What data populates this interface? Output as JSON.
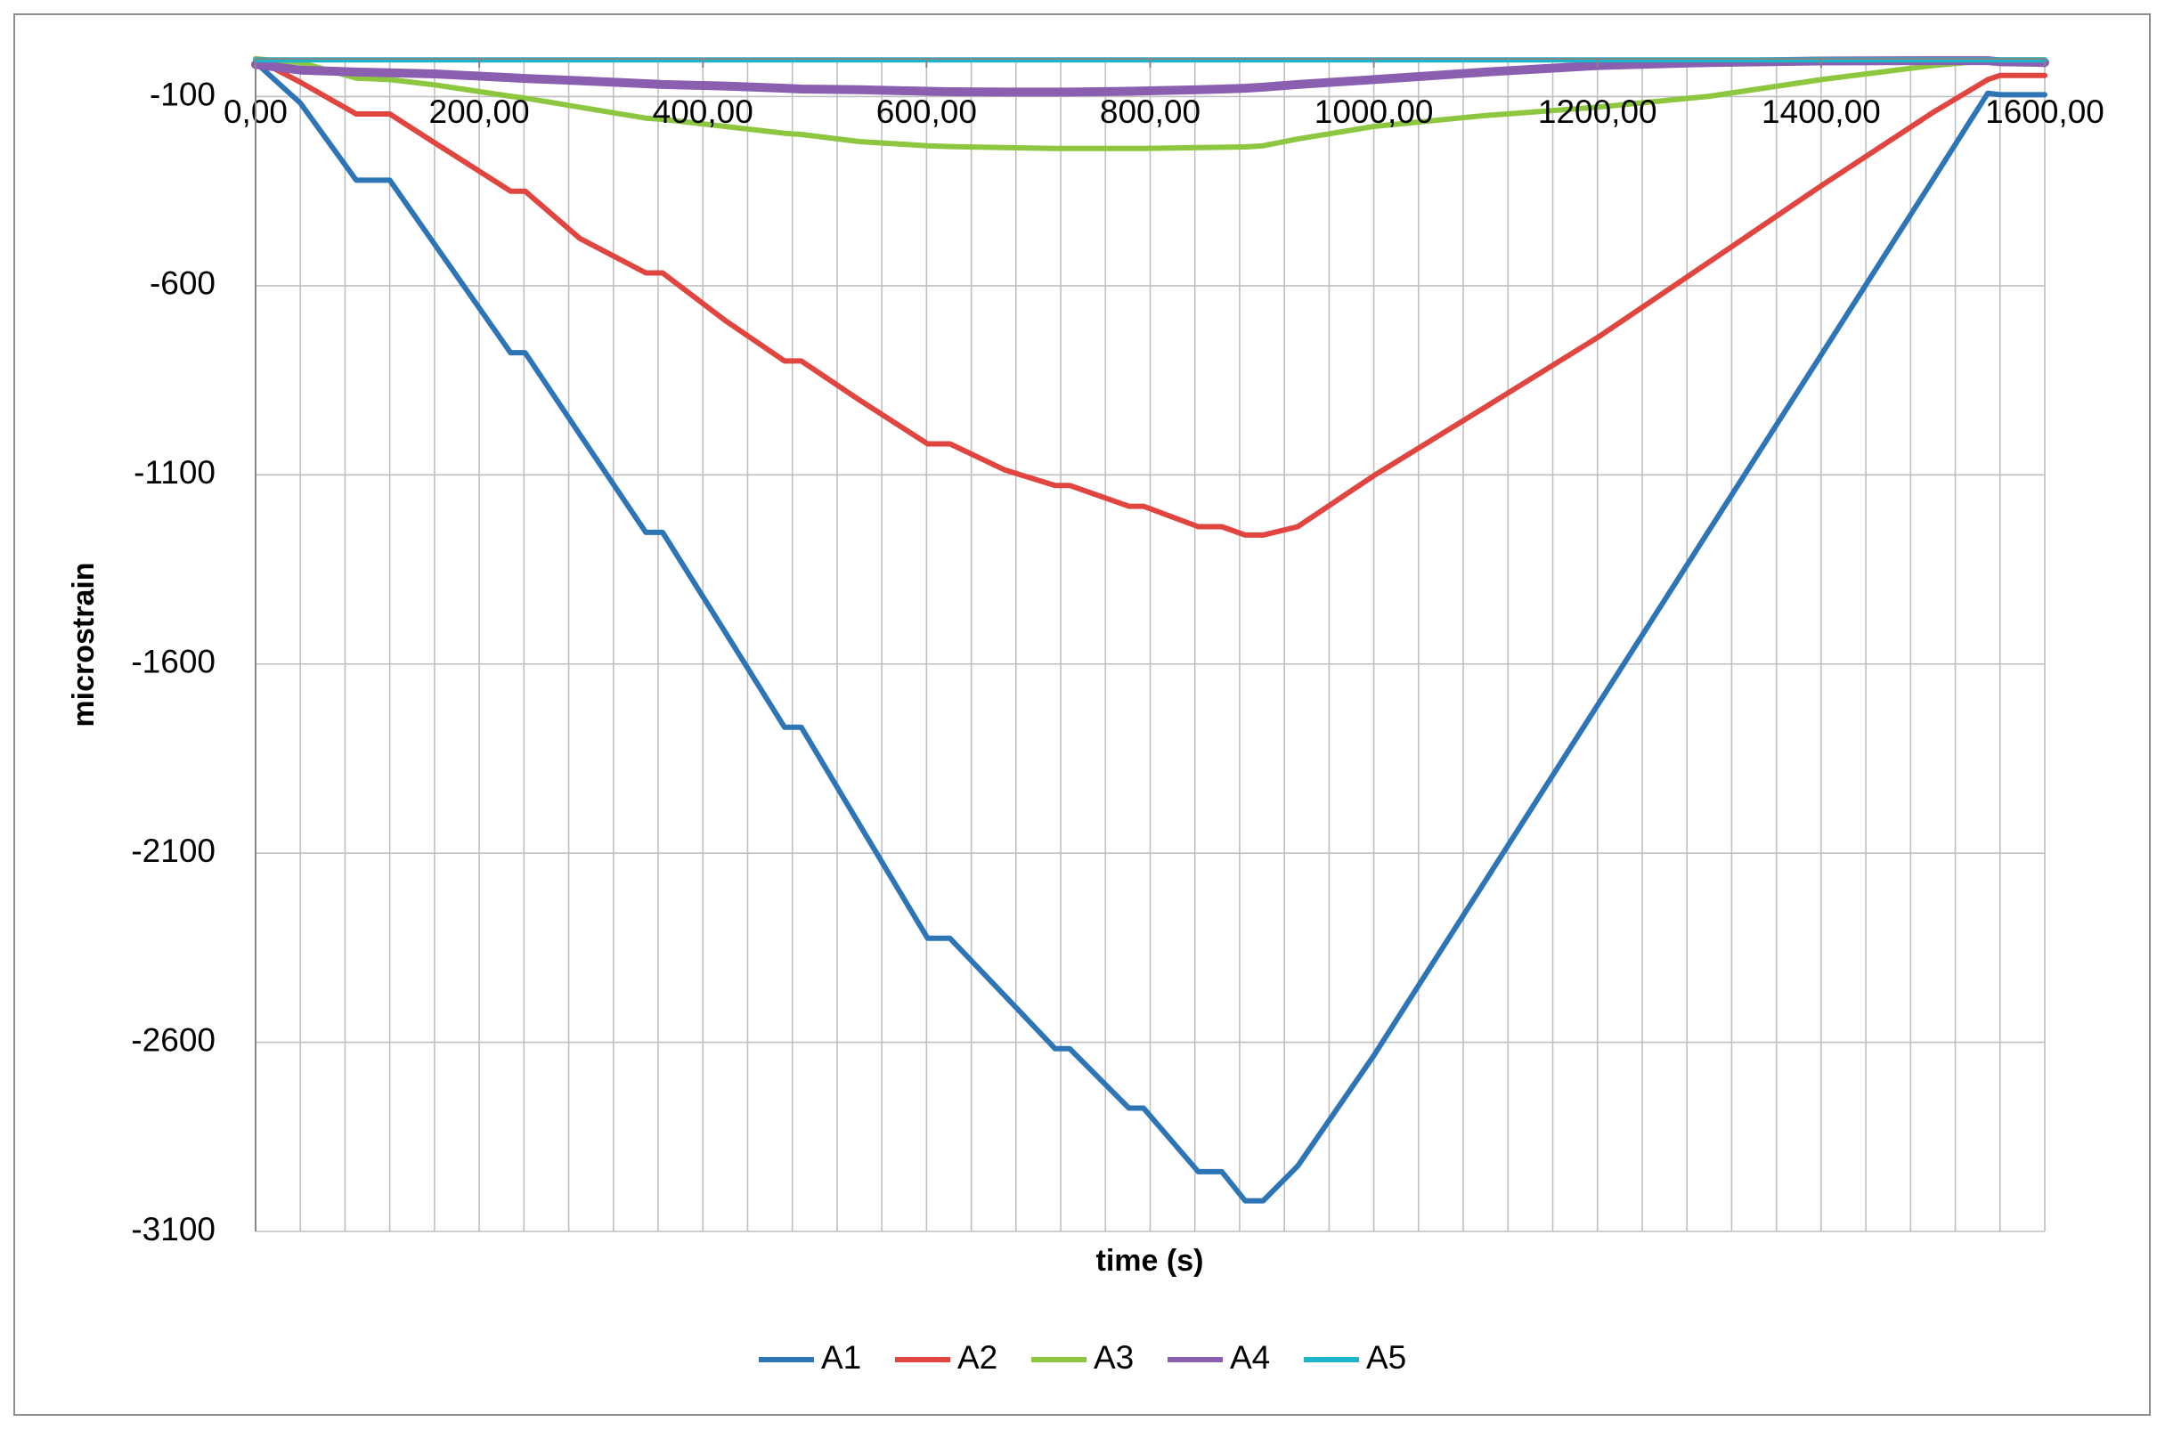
{
  "chart_data": {
    "type": "line",
    "xlabel": "time (s)",
    "ylabel": "microstrain",
    "x": [
      0,
      40,
      90,
      120,
      160,
      228,
      241,
      290,
      349,
      364,
      420,
      473,
      488,
      540,
      601,
      621,
      670,
      715,
      728,
      781,
      794,
      843,
      864,
      885,
      901,
      932,
      1000,
      1100,
      1200,
      1300,
      1400,
      1500,
      1549,
      1560,
      1600
    ],
    "series": [
      {
        "name": "A1",
        "color": "#2e75b6",
        "values": [
          -10,
          -117,
          -321,
          -321,
          -490,
          -777,
          -777,
          -993,
          -1252,
          -1252,
          -1516,
          -1767,
          -1767,
          -2024,
          -2325,
          -2325,
          -2477,
          -2617,
          -2617,
          -2774,
          -2774,
          -2942,
          -2942,
          -3019,
          -3019,
          -2927,
          -2635,
          -2172,
          -1709,
          -1246,
          -783,
          -320,
          -91,
          -95,
          -95
        ]
      },
      {
        "name": "A2",
        "color": "#e0453f",
        "values": [
          0,
          -62,
          -146,
          -146,
          -222,
          -350,
          -350,
          -475,
          -566,
          -566,
          -692,
          -799,
          -799,
          -902,
          -1018,
          -1018,
          -1087,
          -1128,
          -1128,
          -1183,
          -1183,
          -1237,
          -1237,
          -1259,
          -1259,
          -1237,
          -1102,
          -920,
          -737,
          -537,
          -336,
          -142,
          -55,
          -44,
          -44
        ]
      },
      {
        "name": "A3",
        "color": "#8dc63f",
        "values": [
          0,
          -10,
          -51,
          -55,
          -69,
          -99,
          -104,
          -128,
          -157,
          -160,
          -179,
          -197,
          -200,
          -219,
          -230,
          -232,
          -235,
          -237,
          -237,
          -237,
          -237,
          -235,
          -234,
          -233,
          -230,
          -212,
          -179,
          -150,
          -128,
          -99,
          -55,
          -18,
          -5,
          -3,
          -3
        ]
      },
      {
        "name": "A4",
        "color": "#8a5fb0",
        "values": [
          -15,
          -30,
          -35,
          -37,
          -40,
          -50,
          -52,
          -58,
          -66,
          -68,
          -72,
          -78,
          -80,
          -82,
          -86,
          -87,
          -88,
          -88,
          -88,
          -86,
          -85,
          -82,
          -80,
          -78,
          -75,
          -68,
          -55,
          -35,
          -18,
          -10,
          -6,
          -5,
          -5,
          -8,
          -10
        ]
      },
      {
        "name": "A5",
        "color": "#1fb5c9",
        "values": [
          -3,
          -3,
          -3,
          -3,
          -3,
          -3,
          -3,
          -3,
          -3,
          -3,
          -3,
          -3,
          -3,
          -3,
          -3,
          -3,
          -3,
          -3,
          -3,
          -3,
          -3,
          -3,
          -3,
          -3,
          -3,
          -3,
          -3,
          -3,
          -3,
          -3,
          -3,
          -3,
          -3,
          -3,
          -3
        ]
      }
    ],
    "xlim": [
      0,
      1600
    ],
    "ylim": [
      -3100,
      0
    ],
    "xticks": [
      {
        "value": 0,
        "label": "0,00"
      },
      {
        "value": 200,
        "label": "200,00"
      },
      {
        "value": 400,
        "label": "400,00"
      },
      {
        "value": 600,
        "label": "600,00"
      },
      {
        "value": 800,
        "label": "800,00"
      },
      {
        "value": 1000,
        "label": "1000,00"
      },
      {
        "value": 1200,
        "label": "1200,00"
      },
      {
        "value": 1400,
        "label": "1400,00"
      },
      {
        "value": 1600,
        "label": "1600,00"
      }
    ],
    "xminorticks": [
      0,
      40,
      80,
      120,
      160,
      200,
      240,
      280,
      320,
      360,
      400,
      440,
      480,
      520,
      560,
      600,
      640,
      680,
      720,
      760,
      800,
      840,
      880,
      920,
      960,
      1000,
      1040,
      1080,
      1120,
      1160,
      1200,
      1240,
      1280,
      1320,
      1360,
      1400,
      1440,
      1480,
      1520,
      1560,
      1600
    ],
    "yticks": [
      -3100,
      -2600,
      -2100,
      -1600,
      -1100,
      -600,
      -100
    ],
    "grid": true,
    "legend": "bottom"
  }
}
